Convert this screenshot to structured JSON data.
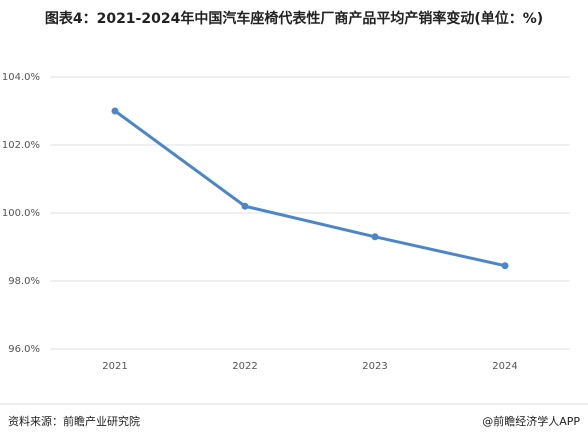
{
  "chart_data": {
    "type": "line",
    "title": "图表4：2021-2024年中国汽车座椅代表性厂商产品平均产销率变动(单位：%)",
    "categories": [
      "2021",
      "2022",
      "2023",
      "2024"
    ],
    "values": [
      103.0,
      100.2,
      99.3,
      98.45
    ],
    "color": "#4a86c8",
    "ylim": [
      96,
      104
    ],
    "yticks": [
      {
        "value": 96,
        "label": "96.0%"
      },
      {
        "value": 98,
        "label": "98.0%"
      },
      {
        "value": 100,
        "label": "100.0%"
      },
      {
        "value": 102,
        "label": "102.0%"
      },
      {
        "value": 104,
        "label": "104.0%"
      }
    ],
    "grid": true,
    "source": "资料来源：前瞻产业研究院",
    "credit": "@前瞻经济学人APP"
  }
}
